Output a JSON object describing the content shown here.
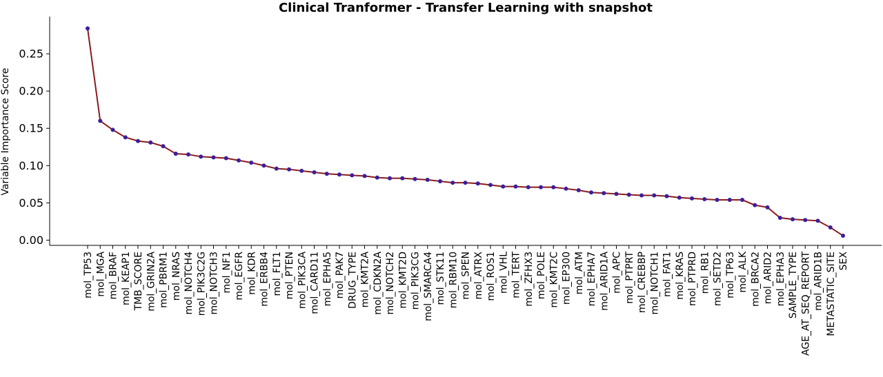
{
  "chart_data": {
    "type": "line",
    "title": "Clinical Tranformer - Transfer Learning with snapshot",
    "xlabel": "",
    "ylabel": "Variable Importance Score",
    "ylim": [
      -0.007,
      0.3
    ],
    "yticks": [
      0.0,
      0.05,
      0.1,
      0.15,
      0.2,
      0.25
    ],
    "ytick_labels": [
      "0.00",
      "0.05",
      "0.10",
      "0.15",
      "0.20",
      "0.25"
    ],
    "grid": false,
    "line_color": "#8b1a1a",
    "marker_color": "#3a1f9c",
    "categories": [
      "mol_TP53",
      "mol_MGA",
      "mol_BRAF",
      "mol_KEAP1",
      "TMB_SCORE",
      "mol_GRIN2A",
      "mol_PBRM1",
      "mol_NRAS",
      "mol_NOTCH4",
      "mol_PIK3C2G",
      "mol_NOTCH3",
      "mol_NF1",
      "mol_EGFR",
      "mol_KDR",
      "mol_ERBB4",
      "mol_FLT1",
      "mol_PTEN",
      "mol_PIK3CA",
      "mol_CARD11",
      "mol_EPHA5",
      "mol_PAK7",
      "DRUG_TYPE",
      "mol_KMT2A",
      "mol_CDKN2A",
      "mol_NOTCH2",
      "mol_KMT2D",
      "mol_PIK3CG",
      "mol_SMARCA4",
      "mol_STK11",
      "mol_RBM10",
      "mol_SPEN",
      "mol_ATRX",
      "mol_ROS1",
      "mol_VHL",
      "mol_TERT",
      "mol_ZFHX3",
      "mol_POLE",
      "mol_KMT2C",
      "mol_EP300",
      "mol_ATM",
      "mol_EPHA7",
      "mol_ARID1A",
      "mol_APC",
      "mol_PTPRT",
      "mol_CREBBP",
      "mol_NOTCH1",
      "mol_FAT1",
      "mol_KRAS",
      "mol_PTPRD",
      "mol_RB1",
      "mol_SETD2",
      "mol_TP63",
      "mol_ALK",
      "mol_BRCA2",
      "mol_ARID2",
      "mol_EPHA3",
      "SAMPLE_TYPE",
      "AGE_AT_SEQ_REPORT",
      "mol_ARID1B",
      "METASTATIC_SITE",
      "SEX"
    ],
    "values": [
      0.284,
      0.16,
      0.148,
      0.138,
      0.133,
      0.131,
      0.126,
      0.116,
      0.115,
      0.112,
      0.111,
      0.11,
      0.107,
      0.104,
      0.1,
      0.096,
      0.095,
      0.093,
      0.091,
      0.089,
      0.088,
      0.087,
      0.086,
      0.084,
      0.083,
      0.083,
      0.082,
      0.081,
      0.079,
      0.077,
      0.077,
      0.076,
      0.074,
      0.072,
      0.072,
      0.071,
      0.071,
      0.071,
      0.069,
      0.067,
      0.064,
      0.063,
      0.062,
      0.061,
      0.06,
      0.06,
      0.059,
      0.057,
      0.056,
      0.055,
      0.054,
      0.054,
      0.054,
      0.047,
      0.044,
      0.03,
      0.028,
      0.027,
      0.026,
      0.017,
      0.006
    ]
  }
}
